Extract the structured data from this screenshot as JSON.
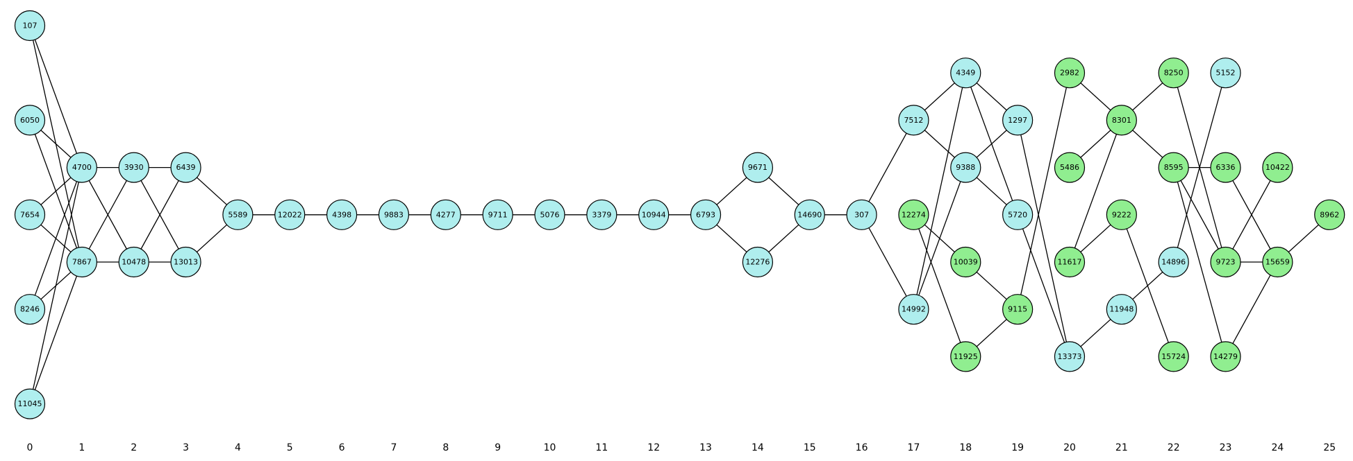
{
  "colors": {
    "cyan": "#afeeee",
    "green": "#90ee90"
  },
  "columns": [
    "0",
    "1",
    "2",
    "3",
    "4",
    "5",
    "6",
    "7",
    "8",
    "9",
    "10",
    "11",
    "12",
    "13",
    "14",
    "15",
    "16",
    "17",
    "18",
    "19",
    "20",
    "21",
    "22",
    "23",
    "24",
    "25"
  ],
  "nodes": [
    {
      "id": "107",
      "col": 0,
      "row": 0,
      "color": "cyan"
    },
    {
      "id": "6050",
      "col": 0,
      "row": 2,
      "color": "cyan"
    },
    {
      "id": "7654",
      "col": 0,
      "row": 4,
      "color": "cyan"
    },
    {
      "id": "8246",
      "col": 0,
      "row": 6,
      "color": "cyan"
    },
    {
      "id": "11045",
      "col": 0,
      "row": 8,
      "color": "cyan"
    },
    {
      "id": "4700",
      "col": 1,
      "row": 3,
      "color": "cyan"
    },
    {
      "id": "7867",
      "col": 1,
      "row": 5,
      "color": "cyan"
    },
    {
      "id": "3930",
      "col": 2,
      "row": 3,
      "color": "cyan"
    },
    {
      "id": "10478",
      "col": 2,
      "row": 5,
      "color": "cyan"
    },
    {
      "id": "6439",
      "col": 3,
      "row": 3,
      "color": "cyan"
    },
    {
      "id": "13013",
      "col": 3,
      "row": 5,
      "color": "cyan"
    },
    {
      "id": "5589",
      "col": 4,
      "row": 4,
      "color": "cyan"
    },
    {
      "id": "12022",
      "col": 5,
      "row": 4,
      "color": "cyan"
    },
    {
      "id": "4398",
      "col": 6,
      "row": 4,
      "color": "cyan"
    },
    {
      "id": "9883",
      "col": 7,
      "row": 4,
      "color": "cyan"
    },
    {
      "id": "4277",
      "col": 8,
      "row": 4,
      "color": "cyan"
    },
    {
      "id": "9711",
      "col": 9,
      "row": 4,
      "color": "cyan"
    },
    {
      "id": "5076",
      "col": 10,
      "row": 4,
      "color": "cyan"
    },
    {
      "id": "3379",
      "col": 11,
      "row": 4,
      "color": "cyan"
    },
    {
      "id": "10944",
      "col": 12,
      "row": 4,
      "color": "cyan"
    },
    {
      "id": "6793",
      "col": 13,
      "row": 4,
      "color": "cyan"
    },
    {
      "id": "9671",
      "col": 14,
      "row": 3,
      "color": "cyan"
    },
    {
      "id": "12276",
      "col": 14,
      "row": 5,
      "color": "cyan"
    },
    {
      "id": "14690",
      "col": 15,
      "row": 4,
      "color": "cyan"
    },
    {
      "id": "307",
      "col": 16,
      "row": 4,
      "color": "cyan"
    },
    {
      "id": "7512",
      "col": 17,
      "row": 2,
      "color": "cyan"
    },
    {
      "id": "12274",
      "col": 17,
      "row": 4,
      "color": "green"
    },
    {
      "id": "14992",
      "col": 17,
      "row": 6,
      "color": "cyan"
    },
    {
      "id": "4349",
      "col": 18,
      "row": 1,
      "color": "cyan"
    },
    {
      "id": "9388",
      "col": 18,
      "row": 3,
      "color": "cyan"
    },
    {
      "id": "10039",
      "col": 18,
      "row": 5,
      "color": "green"
    },
    {
      "id": "11925",
      "col": 18,
      "row": 7,
      "color": "green"
    },
    {
      "id": "1297",
      "col": 19,
      "row": 2,
      "color": "cyan"
    },
    {
      "id": "5720",
      "col": 19,
      "row": 4,
      "color": "cyan"
    },
    {
      "id": "9115",
      "col": 19,
      "row": 6,
      "color": "green"
    },
    {
      "id": "2982",
      "col": 20,
      "row": 1,
      "color": "green"
    },
    {
      "id": "5486",
      "col": 20,
      "row": 3,
      "color": "green"
    },
    {
      "id": "11617",
      "col": 20,
      "row": 5,
      "color": "green"
    },
    {
      "id": "13373",
      "col": 20,
      "row": 7,
      "color": "cyan"
    },
    {
      "id": "8301",
      "col": 21,
      "row": 2,
      "color": "green"
    },
    {
      "id": "9222",
      "col": 21,
      "row": 4,
      "color": "green"
    },
    {
      "id": "11948",
      "col": 21,
      "row": 6,
      "color": "cyan"
    },
    {
      "id": "8250",
      "col": 22,
      "row": 1,
      "color": "green"
    },
    {
      "id": "8595",
      "col": 22,
      "row": 3,
      "color": "green"
    },
    {
      "id": "14896",
      "col": 22,
      "row": 5,
      "color": "cyan"
    },
    {
      "id": "15724",
      "col": 22,
      "row": 7,
      "color": "green"
    },
    {
      "id": "5152",
      "col": 23,
      "row": 1,
      "color": "cyan"
    },
    {
      "id": "6336",
      "col": 23,
      "row": 3,
      "color": "green"
    },
    {
      "id": "9723",
      "col": 23,
      "row": 5,
      "color": "green"
    },
    {
      "id": "14279",
      "col": 23,
      "row": 7,
      "color": "green"
    },
    {
      "id": "10422",
      "col": 24,
      "row": 3,
      "color": "green"
    },
    {
      "id": "15659",
      "col": 24,
      "row": 5,
      "color": "green"
    },
    {
      "id": "8962",
      "col": 25,
      "row": 4,
      "color": "green"
    }
  ],
  "edges": [
    [
      "107",
      "4700"
    ],
    [
      "107",
      "7867"
    ],
    [
      "6050",
      "4700"
    ],
    [
      "6050",
      "7867"
    ],
    [
      "7654",
      "4700"
    ],
    [
      "7654",
      "7867"
    ],
    [
      "8246",
      "4700"
    ],
    [
      "8246",
      "7867"
    ],
    [
      "11045",
      "4700"
    ],
    [
      "11045",
      "7867"
    ],
    [
      "4700",
      "3930"
    ],
    [
      "4700",
      "10478"
    ],
    [
      "7867",
      "3930"
    ],
    [
      "7867",
      "10478"
    ],
    [
      "3930",
      "6439"
    ],
    [
      "3930",
      "13013"
    ],
    [
      "10478",
      "6439"
    ],
    [
      "10478",
      "13013"
    ],
    [
      "6439",
      "5589"
    ],
    [
      "13013",
      "5589"
    ],
    [
      "5589",
      "12022"
    ],
    [
      "12022",
      "4398"
    ],
    [
      "4398",
      "9883"
    ],
    [
      "9883",
      "4277"
    ],
    [
      "4277",
      "9711"
    ],
    [
      "9711",
      "5076"
    ],
    [
      "5076",
      "3379"
    ],
    [
      "3379",
      "10944"
    ],
    [
      "10944",
      "6793"
    ],
    [
      "6793",
      "9671"
    ],
    [
      "6793",
      "12276"
    ],
    [
      "9671",
      "14690"
    ],
    [
      "12276",
      "14690"
    ],
    [
      "14690",
      "307"
    ],
    [
      "307",
      "7512"
    ],
    [
      "307",
      "14992"
    ],
    [
      "7512",
      "4349"
    ],
    [
      "7512",
      "9388"
    ],
    [
      "14992",
      "4349"
    ],
    [
      "14992",
      "9388"
    ],
    [
      "4349",
      "1297"
    ],
    [
      "4349",
      "5720"
    ],
    [
      "9388",
      "1297"
    ],
    [
      "9388",
      "5720"
    ],
    [
      "12274",
      "10039"
    ],
    [
      "12274",
      "11925"
    ],
    [
      "10039",
      "9115"
    ],
    [
      "11925",
      "9115"
    ],
    [
      "1297",
      "13373"
    ],
    [
      "5720",
      "13373"
    ],
    [
      "9115",
      "2982"
    ],
    [
      "2982",
      "8301"
    ],
    [
      "5486",
      "8301"
    ],
    [
      "11617",
      "8301"
    ],
    [
      "11617",
      "9222"
    ],
    [
      "13373",
      "11948"
    ],
    [
      "8301",
      "8250"
    ],
    [
      "8301",
      "8595"
    ],
    [
      "9222",
      "15724"
    ],
    [
      "11948",
      "14896"
    ],
    [
      "14896",
      "5152"
    ],
    [
      "8250",
      "9723"
    ],
    [
      "8595",
      "6336"
    ],
    [
      "8595",
      "9723"
    ],
    [
      "8595",
      "14279"
    ],
    [
      "6336",
      "15659"
    ],
    [
      "9723",
      "10422"
    ],
    [
      "9723",
      "15659"
    ],
    [
      "14279",
      "15659"
    ],
    [
      "15659",
      "8962"
    ]
  ]
}
